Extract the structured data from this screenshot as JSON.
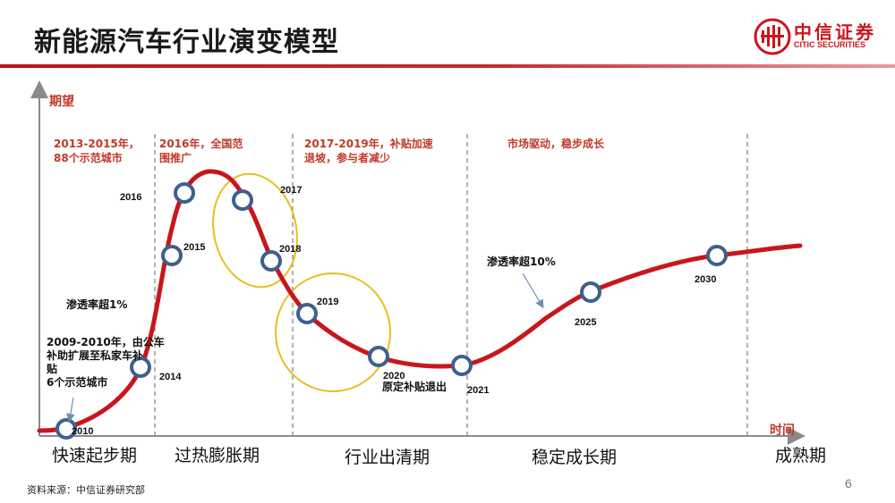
{
  "title": "新能源汽车行业演变模型",
  "logo": {
    "main": "中信证券",
    "sub": "CITIC SECURITIES"
  },
  "axes": {
    "y": "期望",
    "x": "时间"
  },
  "phase_notes": [
    {
      "lines": [
        "2013-2015年，",
        "88个示范城市"
      ]
    },
    {
      "lines": [
        "2016年，全国范",
        "围推广"
      ]
    },
    {
      "lines": [
        "2017-2019年，补贴加速",
        "退坡，参与者减少"
      ]
    },
    {
      "lines": [
        "市场驱动，稳步成长"
      ]
    }
  ],
  "years": [
    "2010",
    "2014",
    "2015",
    "2016",
    "2017",
    "2018",
    "2019",
    "2020",
    "2021",
    "2025",
    "2030"
  ],
  "annotations": {
    "penetration_1": "渗透率超1%",
    "penetration_10": "渗透率超10%",
    "pilot": [
      "2009-2010年，由公车",
      "补助扩展至私家车补",
      "贴",
      "6个示范城市"
    ],
    "subsidy_exit": "原定补贴退出"
  },
  "stages": [
    "快速起步期",
    "过热膨胀期",
    "行业出清期",
    "稳定成长期",
    "成熟期"
  ],
  "footer": {
    "source": "资料来源：中信证券研究部",
    "page": "6"
  },
  "colors": {
    "curve": "#c8161d",
    "node_ring": "#3f5f8f",
    "highlight": "#e6c020",
    "note": "#c0392b"
  }
}
